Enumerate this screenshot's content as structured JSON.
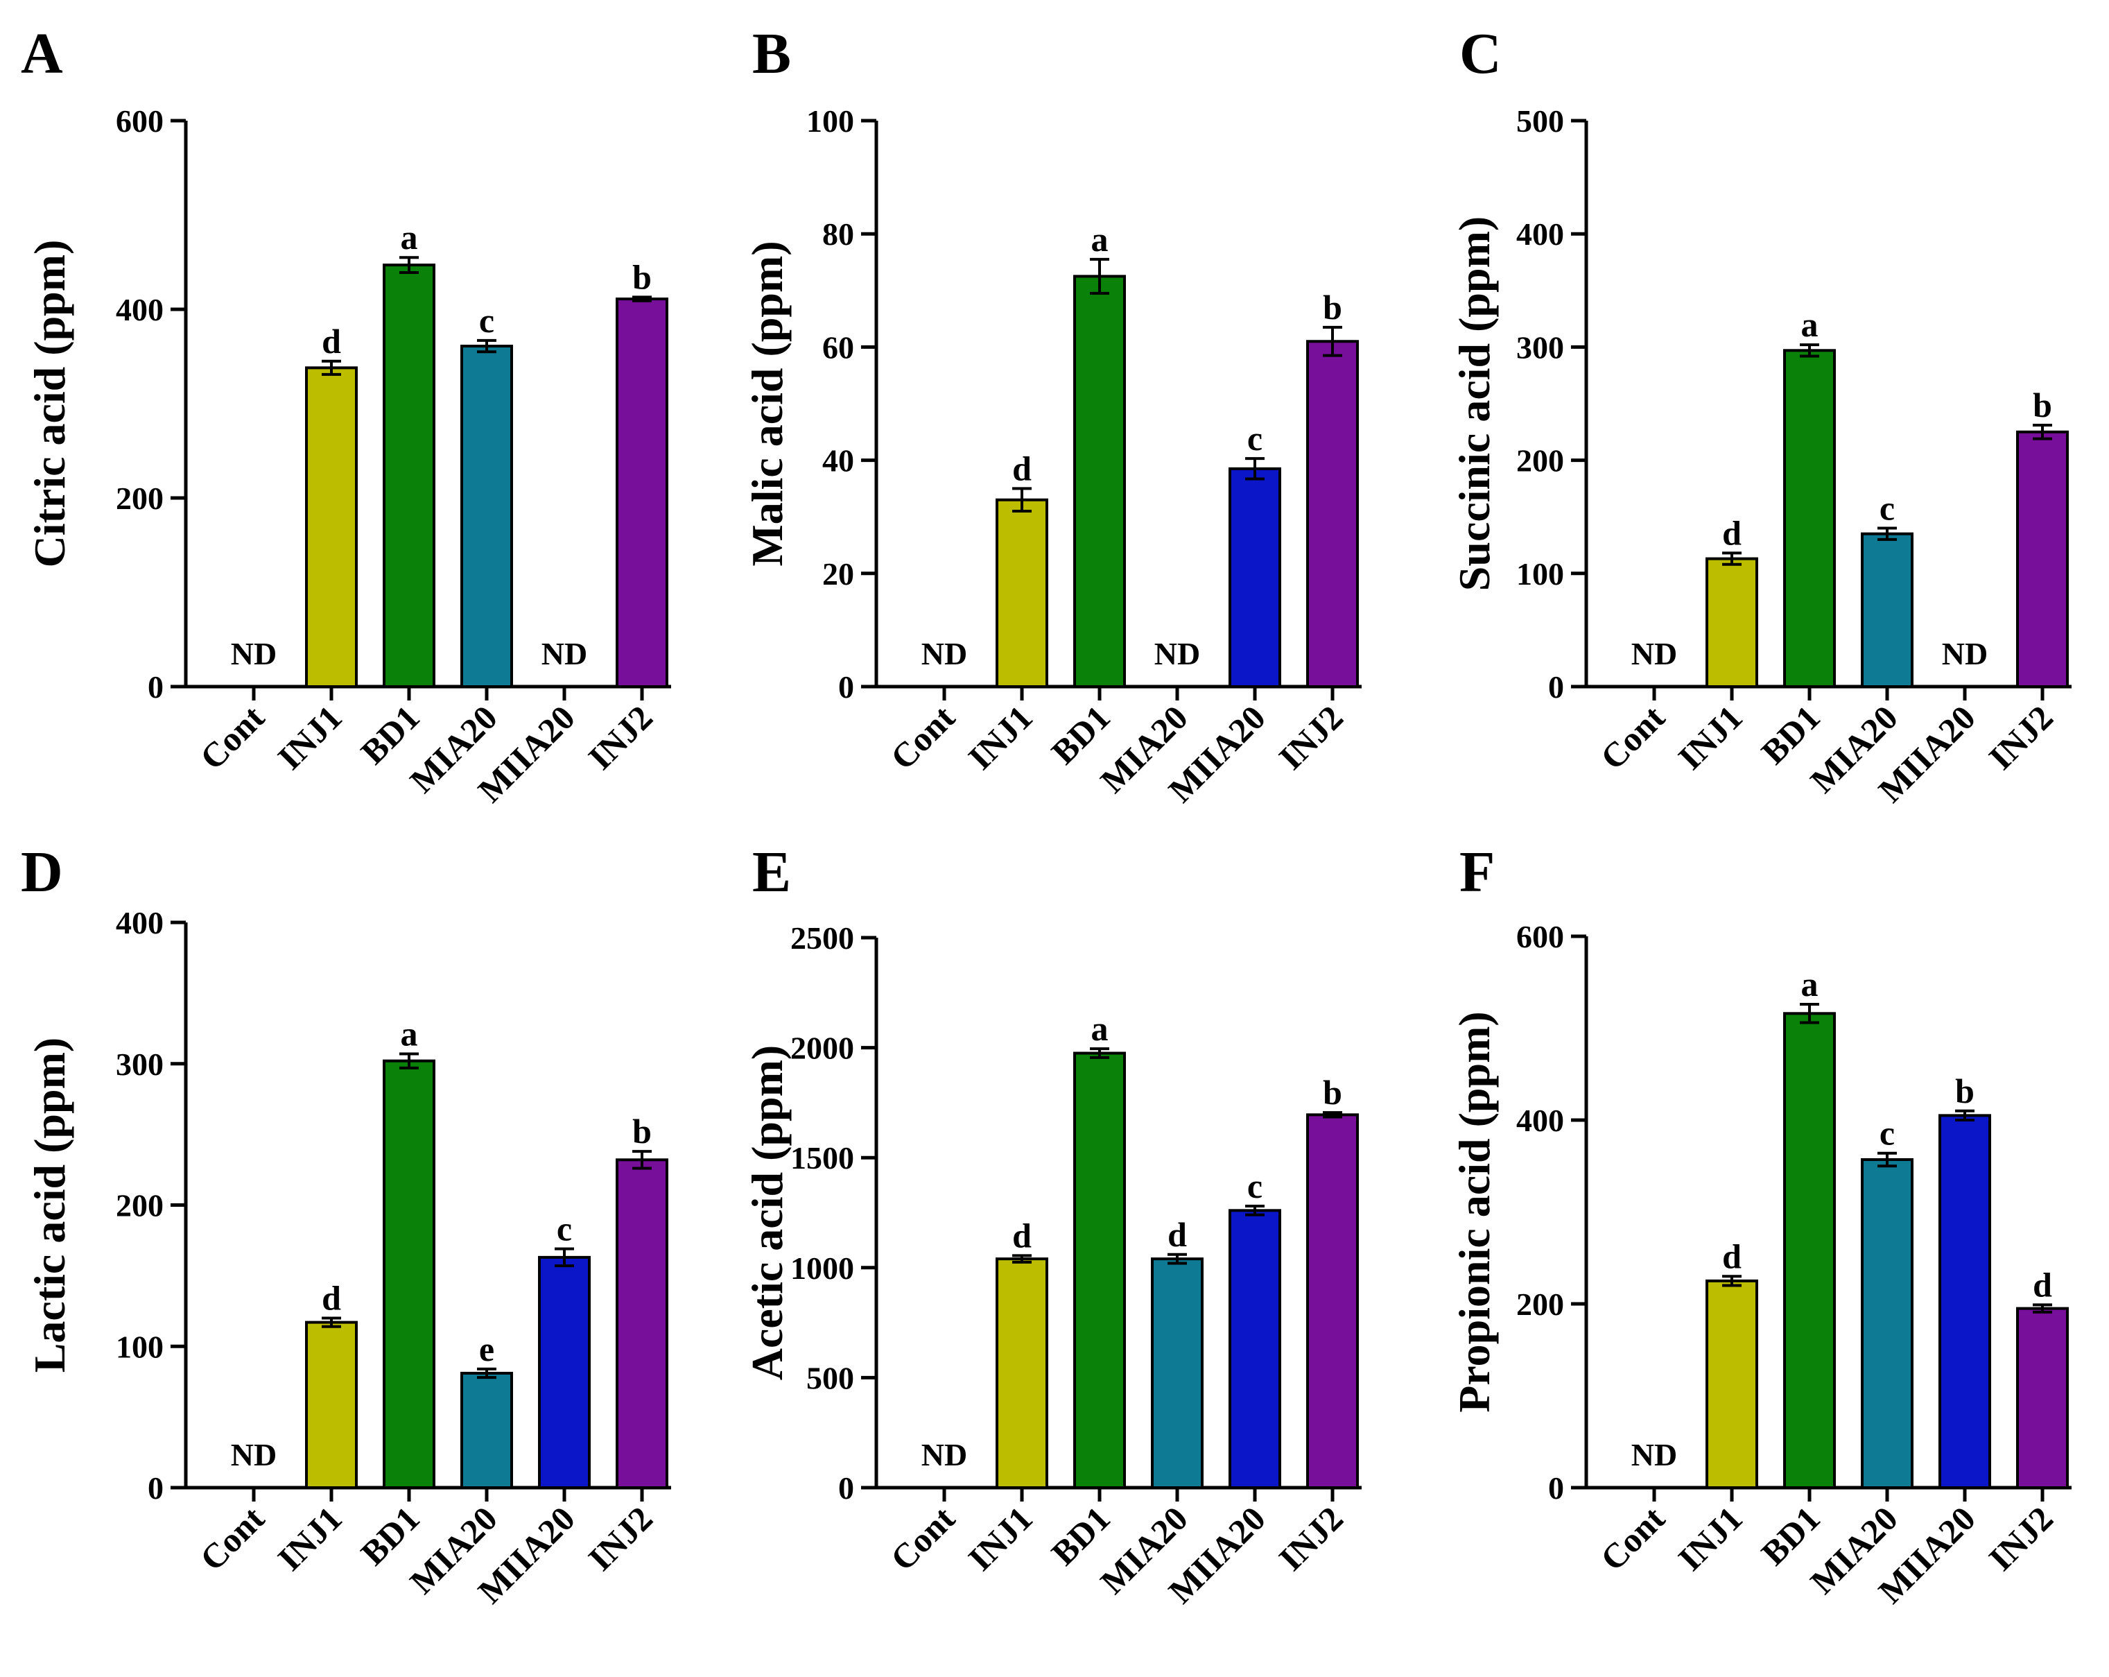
{
  "chart_data": [
    {
      "panel": "A",
      "type": "bar",
      "ylabel": "Citric acid (ppm)",
      "ylim": [
        0,
        600
      ],
      "ticks": [
        0,
        200,
        400,
        600
      ],
      "categories": [
        "Cont",
        "INJ1",
        "BD1",
        "MIA20",
        "MIIA20",
        "INJ2"
      ],
      "values": [
        null,
        338,
        447,
        361,
        null,
        411
      ],
      "errors": [
        0,
        7,
        8,
        6,
        0,
        2
      ],
      "letters": [
        "",
        "d",
        "a",
        "c",
        "",
        "b"
      ],
      "nd_label": [
        "ND",
        "",
        "",
        "",
        "ND",
        ""
      ],
      "colors": [
        "",
        "#bdbd00",
        "#0a820a",
        "#0e7a94",
        "",
        "#770f9a"
      ]
    },
    {
      "panel": "B",
      "type": "bar",
      "ylabel": "Malic acid (ppm)",
      "ylim": [
        0,
        100
      ],
      "ticks": [
        0,
        20,
        40,
        60,
        80,
        100
      ],
      "categories": [
        "Cont",
        "INJ1",
        "BD1",
        "MIA20",
        "MIIA20",
        "INJ2"
      ],
      "values": [
        null,
        33,
        72.5,
        null,
        38.5,
        61
      ],
      "errors": [
        0,
        2,
        3,
        0,
        1.8,
        2.5
      ],
      "letters": [
        "",
        "d",
        "a",
        "",
        "c",
        "b"
      ],
      "nd_label": [
        "ND",
        "",
        "",
        "ND",
        "",
        ""
      ],
      "colors": [
        "",
        "#bdbd00",
        "#0a820a",
        "",
        "#0b16c8",
        "#770f9a"
      ]
    },
    {
      "panel": "C",
      "type": "bar",
      "ylabel": "Succinic acid (ppm)",
      "ylim": [
        0,
        500
      ],
      "ticks": [
        0,
        100,
        200,
        300,
        400,
        500
      ],
      "categories": [
        "Cont",
        "INJ1",
        "BD1",
        "MIA20",
        "MIIA20",
        "INJ2"
      ],
      "values": [
        null,
        113,
        297,
        135,
        null,
        225
      ],
      "errors": [
        0,
        5,
        5,
        5,
        0,
        6
      ],
      "letters": [
        "",
        "d",
        "a",
        "c",
        "",
        "b"
      ],
      "nd_label": [
        "ND",
        "",
        "",
        "",
        "ND",
        ""
      ],
      "colors": [
        "",
        "#bdbd00",
        "#0a820a",
        "#0e7a94",
        "",
        "#770f9a"
      ]
    },
    {
      "panel": "D",
      "type": "bar",
      "ylabel": "Lactic acid (ppm)",
      "ylim": [
        0,
        400
      ],
      "ticks": [
        0,
        100,
        200,
        300,
        400
      ],
      "categories": [
        "Cont",
        "INJ1",
        "BD1",
        "MIA20",
        "MIIA20",
        "INJ2"
      ],
      "values": [
        null,
        117,
        302,
        81,
        163,
        232
      ],
      "errors": [
        0,
        3,
        5,
        3,
        6,
        6
      ],
      "letters": [
        "",
        "d",
        "a",
        "e",
        "c",
        "b"
      ],
      "nd_label": [
        "ND",
        "",
        "",
        "",
        "",
        ""
      ],
      "colors": [
        "",
        "#bdbd00",
        "#0a820a",
        "#0e7a94",
        "#0b16c8",
        "#770f9a"
      ]
    },
    {
      "panel": "E",
      "type": "bar",
      "ylabel": "Acetic acid (ppm)",
      "ylim": [
        0,
        2500
      ],
      "ticks": [
        0,
        500,
        1000,
        1500,
        2000,
        2500
      ],
      "categories": [
        "Cont",
        "INJ1",
        "BD1",
        "MIA20",
        "MIIA20",
        "INJ2"
      ],
      "values": [
        null,
        1040,
        1975,
        1040,
        1260,
        1695
      ],
      "errors": [
        0,
        15,
        20,
        20,
        20,
        10
      ],
      "letters": [
        "",
        "d",
        "a",
        "d",
        "c",
        "b"
      ],
      "nd_label": [
        "ND",
        "",
        "",
        "",
        "",
        ""
      ],
      "colors": [
        "",
        "#bdbd00",
        "#0a820a",
        "#0e7a94",
        "#0b16c8",
        "#770f9a"
      ]
    },
    {
      "panel": "F",
      "type": "bar",
      "ylabel": "Propionic acid (ppm)",
      "ylim": [
        0,
        600
      ],
      "ticks": [
        0,
        200,
        400,
        600
      ],
      "categories": [
        "Cont",
        "INJ1",
        "BD1",
        "MIA20",
        "MIIA20",
        "INJ2"
      ],
      "values": [
        null,
        225,
        516,
        357,
        405,
        195
      ],
      "errors": [
        0,
        5,
        10,
        7,
        5,
        4
      ],
      "letters": [
        "",
        "d",
        "a",
        "c",
        "b",
        "d"
      ],
      "nd_label": [
        "ND",
        "",
        "",
        "",
        "",
        ""
      ],
      "colors": [
        "",
        "#bdbd00",
        "#0a820a",
        "#0e7a94",
        "#0b16c8",
        "#770f9a"
      ]
    }
  ]
}
